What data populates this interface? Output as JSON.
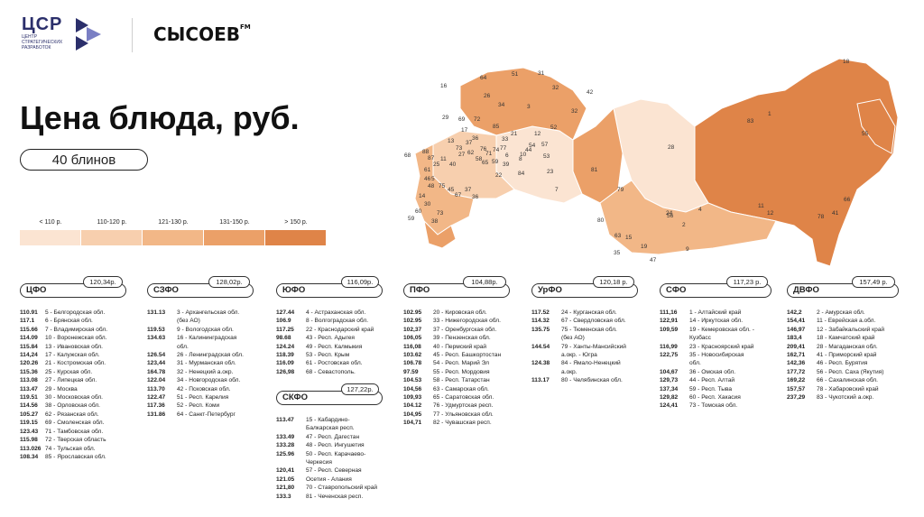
{
  "header": {
    "logo_csr": "ЦСР",
    "logo_csr_sub": "центр стратегических разработок",
    "logo_sysoev": "СЫСОЕВ",
    "logo_sysoev_mark": "FM"
  },
  "title": "Цена блюда, руб.",
  "subtitle": "40 блинов",
  "legend": [
    {
      "label": "< 110 р.",
      "color": "#fbe4d2"
    },
    {
      "label": "110-120 р.",
      "color": "#f7cfae"
    },
    {
      "label": "121-130 р.",
      "color": "#f2b787"
    },
    {
      "label": "131-150 р.",
      "color": "#eba068"
    },
    {
      "label": "> 150 р.",
      "color": "#df8448"
    }
  ],
  "map_labels": [
    "16",
    "64",
    "51",
    "31",
    "32",
    "42",
    "26",
    "34",
    "3",
    "29",
    "32",
    "69",
    "72",
    "85",
    "21",
    "12",
    "17",
    "52",
    "54",
    "57",
    "33",
    "36",
    "13",
    "37",
    "76",
    "74",
    "8",
    "44",
    "10",
    "6",
    "53",
    "39",
    "71",
    "77",
    "58",
    "59",
    "68",
    "88",
    "87",
    "11",
    "25",
    "40",
    "27",
    "73",
    "62",
    "65",
    "22",
    "61",
    "5",
    "75",
    "45",
    "67",
    "37",
    "36",
    "84",
    "23",
    "7",
    "81",
    "80",
    "79",
    "56",
    "28",
    "83",
    "18",
    "55",
    "1",
    "63",
    "15",
    "35",
    "19",
    "24",
    "47",
    "4",
    "2",
    "9",
    "30",
    "38",
    "73",
    "60",
    "59",
    "48",
    "14",
    "46",
    "12",
    "66",
    "78",
    "11",
    "41"
  ],
  "districts": [
    {
      "name": "ЦФО",
      "avg": "120,34р.",
      "rows": [
        [
          "110.91",
          "5 - Белгородская обл."
        ],
        [
          "117.1",
          "6 - Брянская обл."
        ],
        [
          "115.66",
          "7 - Владимирская обл."
        ],
        [
          "114.09",
          "10 - Воронежская обл."
        ],
        [
          "115.84",
          "13 - Ивановская обл."
        ],
        [
          "114,24",
          "17 - Калужская обл."
        ],
        [
          "120.26",
          "21 - Костромская обл."
        ],
        [
          "115.36",
          "25 - Курская обл."
        ],
        [
          "113.08",
          "27 - Липецкая обл."
        ],
        [
          "113.47",
          "29 - Москва"
        ],
        [
          "119.51",
          "30 - Московская обл."
        ],
        [
          "114.56",
          "38 - Орловская обл."
        ],
        [
          "105.27",
          "62 - Рязанская обл."
        ],
        [
          "119.15",
          "69 - Смоленская обл."
        ],
        [
          "123.43",
          "71 - Тамбовская обл."
        ],
        [
          "115.98",
          "72 - Тверская область"
        ],
        [
          "113.026",
          "74 - Тульская обл."
        ],
        [
          "108.34",
          "85 - Ярославская обл."
        ]
      ]
    },
    {
      "name": "СЗФО",
      "avg": "128,02р.",
      "rows": [
        [
          "131.13",
          "3 - Архангельская обл."
        ],
        [
          "",
          "(без АО)"
        ],
        [
          "119.53",
          "9 - Вологодская обл."
        ],
        [
          "134.63",
          "16 - Калининградская"
        ],
        [
          "",
          "обл."
        ],
        [
          "126.54",
          "26 - Ленинградская обл."
        ],
        [
          "123,44",
          "31 - Мурманская обл."
        ],
        [
          "164.78",
          "32 - Ненецкий а.окр."
        ],
        [
          "122.04",
          "34 - Новгородская обл."
        ],
        [
          "113.70",
          "42 - Псковская обл."
        ],
        [
          "122.47",
          "51 - Респ. Карелия"
        ],
        [
          "117.36",
          "52 - Респ. Коми"
        ],
        [
          "131.86",
          "64 - Санкт-Петербург"
        ]
      ]
    },
    {
      "name": "ЮФО",
      "avg": "116,09р.",
      "rows": [
        [
          "127.44",
          "4 - Астраханская обл."
        ],
        [
          "106.9",
          "8 - Волгоградская обл."
        ],
        [
          "117.25",
          "22 - Краснодарский край"
        ],
        [
          "98.68",
          "43 - Респ. Адыгея"
        ],
        [
          "124.24",
          "49 - Респ. Калмыкия"
        ],
        [
          "118.39",
          "53 - Респ. Крым"
        ],
        [
          "116.09",
          "61 - Ростовская обл."
        ],
        [
          "126,98",
          "68 - Севастополь."
        ]
      ]
    },
    {
      "name": "СКФО",
      "avg": "127,22р.",
      "rows": [
        [
          "113.47",
          "15 - Кабардино-"
        ],
        [
          "",
          "Балкарская респ."
        ],
        [
          "133.49",
          "47 - Респ. Дагестан"
        ],
        [
          "133.28",
          "48 - Респ. Ингушетия"
        ],
        [
          "125.96",
          "50 - Респ. Карачаево-"
        ],
        [
          "",
          "Черкесия"
        ],
        [
          "120,41",
          "57 - Респ. Северная"
        ],
        [
          "121.05",
          "Осетия - Алания"
        ],
        [
          "121,80",
          "70 - Ставропольский край"
        ],
        [
          "133.3",
          "81 - Чеченская респ."
        ]
      ]
    },
    {
      "name": "ПФО",
      "avg": "104,88р.",
      "rows": [
        [
          "102.95",
          "20 - Кировская обл."
        ],
        [
          "102.95",
          "33 - Нижегородская обл."
        ],
        [
          "102,37",
          "37 - Оренбургская обл."
        ],
        [
          "106,05",
          "39 - Пензенская обл."
        ],
        [
          "116,08",
          "40 - Пермский край"
        ],
        [
          "103.62",
          "45 - Респ. Башкортостан"
        ],
        [
          "106.78",
          "54 - Респ. Марий Эл"
        ],
        [
          "97.59",
          "55 - Респ. Мордовия"
        ],
        [
          "104.53",
          "58 - Респ. Татарстан"
        ],
        [
          "104,56",
          "63 - Самарская обл."
        ],
        [
          "109,93",
          "65 - Саратовская обл."
        ],
        [
          "104.12",
          "76 - Удмуртская респ."
        ],
        [
          "104,95",
          "77 - Ульяновская обл."
        ],
        [
          "104,71",
          "82 - Чувашская респ."
        ]
      ]
    },
    {
      "name": "УрФО",
      "avg": "120,18 р.",
      "rows": [
        [
          "117.52",
          "24 - Курганская обл."
        ],
        [
          "114.32",
          "67 - Свердловская обл."
        ],
        [
          "135.75",
          "75 - Тюменская обл."
        ],
        [
          "",
          "(без АО)"
        ],
        [
          "144.54",
          "79 - Ханты-Мансийский"
        ],
        [
          "",
          "а.окр. - Югра"
        ],
        [
          "124.38",
          "84 - Ямало-Ненецкий"
        ],
        [
          "",
          "а.окр."
        ],
        [
          "113.17",
          "80 - Челябинская обл."
        ]
      ]
    },
    {
      "name": "СФО",
      "avg": "117,23 р.",
      "rows": [
        [
          "111,16",
          "1 - Алтайский край"
        ],
        [
          "122,91",
          "14 - Иркутская обл."
        ],
        [
          "109,59",
          "19 - Кемеровская обл. -"
        ],
        [
          "",
          "Кузбасс"
        ],
        [
          "116,99",
          "23 - Красноярский край"
        ],
        [
          "122,75",
          "35 - Новосибирская"
        ],
        [
          "",
          "обл."
        ],
        [
          "104,67",
          "36 - Омская обл."
        ],
        [
          "129,73",
          "44 - Респ. Алтай"
        ],
        [
          "137,34",
          "59 - Респ. Тыва"
        ],
        [
          "129,82",
          "60 - Респ. Хакасия"
        ],
        [
          "124,41",
          "73 - Томская обл."
        ]
      ]
    },
    {
      "name": "ДВФО",
      "avg": "157,49 р.",
      "rows": [
        [
          "142,2",
          "2 - Амурская обл."
        ],
        [
          "154,41",
          "11 - Еврейская а.обл."
        ],
        [
          "146,97",
          "12 - Забайкальский край"
        ],
        [
          "183,4",
          "18 - Камчатский край"
        ],
        [
          "209,41",
          "28 - Магаданская обл."
        ],
        [
          "162,71",
          "41 - Приморский край"
        ],
        [
          "142,36",
          "46 - Респ. Бурятия"
        ],
        [
          "177,72",
          "56 - Респ. Саха (Якутия)"
        ],
        [
          "169,22",
          "66 - Сахалинская обл."
        ],
        [
          "157,57",
          "78 - Хабаровский край"
        ],
        [
          "237,29",
          "83 - Чукотский а.окр."
        ]
      ]
    }
  ]
}
